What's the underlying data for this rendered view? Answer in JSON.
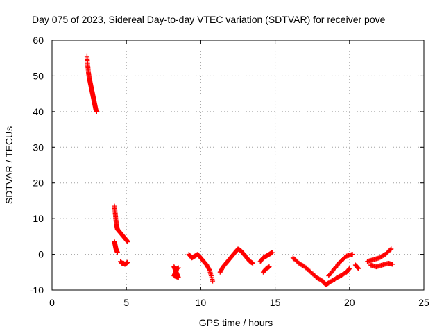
{
  "chart_data": {
    "type": "scatter",
    "title": "Day 075 of 2023, Sidereal Day-to-day VTEC variation (SDTVAR) for receiver pove",
    "xlabel": "GPS time / hours",
    "ylabel": "SDTVAR / TECUs",
    "xlim": [
      0,
      25
    ],
    "ylim": [
      -10,
      60
    ],
    "xticks": [
      0,
      5,
      10,
      15,
      20,
      25
    ],
    "yticks": [
      -10,
      0,
      10,
      20,
      30,
      40,
      50,
      60
    ],
    "grid": true,
    "marker": "+",
    "color": "#ff0000",
    "series": [
      {
        "name": "SDTVAR",
        "segments": [
          {
            "x": [
              2.35,
              2.4,
              2.45,
              2.5,
              2.55,
              2.6,
              2.65,
              2.7,
              2.75,
              2.8,
              2.85,
              2.9,
              2.95,
              3.0
            ],
            "y": [
              55.5,
              53,
              51,
              49.5,
              48.5,
              47.5,
              46.5,
              45.5,
              44.5,
              43.5,
              42.5,
              41.5,
              40.5,
              40
            ]
          },
          {
            "x": [
              4.2,
              4.25,
              4.3,
              4.35,
              4.4,
              4.5,
              4.6,
              4.7,
              4.8,
              4.9,
              5.0,
              5.1
            ],
            "y": [
              13.5,
              11.5,
              9.5,
              8,
              7,
              6.5,
              6,
              5.5,
              5,
              4.5,
              4,
              3.5
            ]
          },
          {
            "x": [
              4.2,
              4.25,
              4.3,
              4.35,
              4.4
            ],
            "y": [
              3.5,
              2.5,
              1.5,
              1,
              0.5
            ]
          },
          {
            "x": [
              4.6,
              4.7,
              4.8,
              4.9,
              5.0,
              5.1
            ],
            "y": [
              -2,
              -2.5,
              -2.5,
              -2.8,
              -2.5,
              -2.2
            ]
          },
          {
            "x": [
              8.2,
              8.3,
              8.4,
              8.5,
              8.2,
              8.3,
              8.4,
              8.5
            ],
            "y": [
              -3.5,
              -4.5,
              -5.5,
              -6.5,
              -6,
              -5,
              -4,
              -3.8
            ]
          },
          {
            "x": [
              9.2,
              9.4,
              9.6,
              9.8,
              10.0,
              10.2,
              10.4,
              10.6,
              10.8
            ],
            "y": [
              0,
              -1,
              -0.5,
              0,
              -1,
              -2,
              -3,
              -4.5,
              -7.5
            ]
          },
          {
            "x": [
              11.3,
              11.5,
              11.7,
              11.9,
              12.1,
              12.3,
              12.5,
              12.7,
              12.9,
              13.1,
              13.3,
              13.5
            ],
            "y": [
              -5,
              -3.5,
              -2.5,
              -1.5,
              -0.5,
              0.5,
              1.5,
              1,
              0,
              -1,
              -2,
              -2.5
            ]
          },
          {
            "x": [
              14.0,
              14.2,
              14.4,
              14.6,
              14.8
            ],
            "y": [
              -2,
              -1,
              -0.5,
              0,
              0.5
            ]
          },
          {
            "x": [
              14.2,
              14.4,
              14.6
            ],
            "y": [
              -5,
              -4,
              -3.5
            ]
          },
          {
            "x": [
              16.2,
              16.6,
              17.0,
              17.4,
              17.8,
              18.2,
              18.4,
              18.6,
              19.0,
              19.4,
              19.8,
              20.0
            ],
            "y": [
              -1,
              -2.5,
              -3.5,
              -5,
              -6.5,
              -7.5,
              -8.5,
              -8,
              -7,
              -6,
              -5,
              -4
            ]
          },
          {
            "x": [
              18.6,
              19.0,
              19.4,
              19.8,
              20.2
            ],
            "y": [
              -6,
              -4,
              -2,
              -0.5,
              0
            ]
          },
          {
            "x": [
              20.4,
              20.6
            ],
            "y": [
              -3,
              -4
            ]
          },
          {
            "x": [
              21.2,
              21.6,
              22.0,
              22.4,
              22.8
            ],
            "y": [
              -2,
              -1.5,
              -1,
              0,
              1.5
            ]
          },
          {
            "x": [
              21.4,
              21.8,
              22.2,
              22.6,
              22.9
            ],
            "y": [
              -3,
              -3.5,
              -3,
              -2.5,
              -2.8
            ]
          }
        ]
      }
    ]
  }
}
